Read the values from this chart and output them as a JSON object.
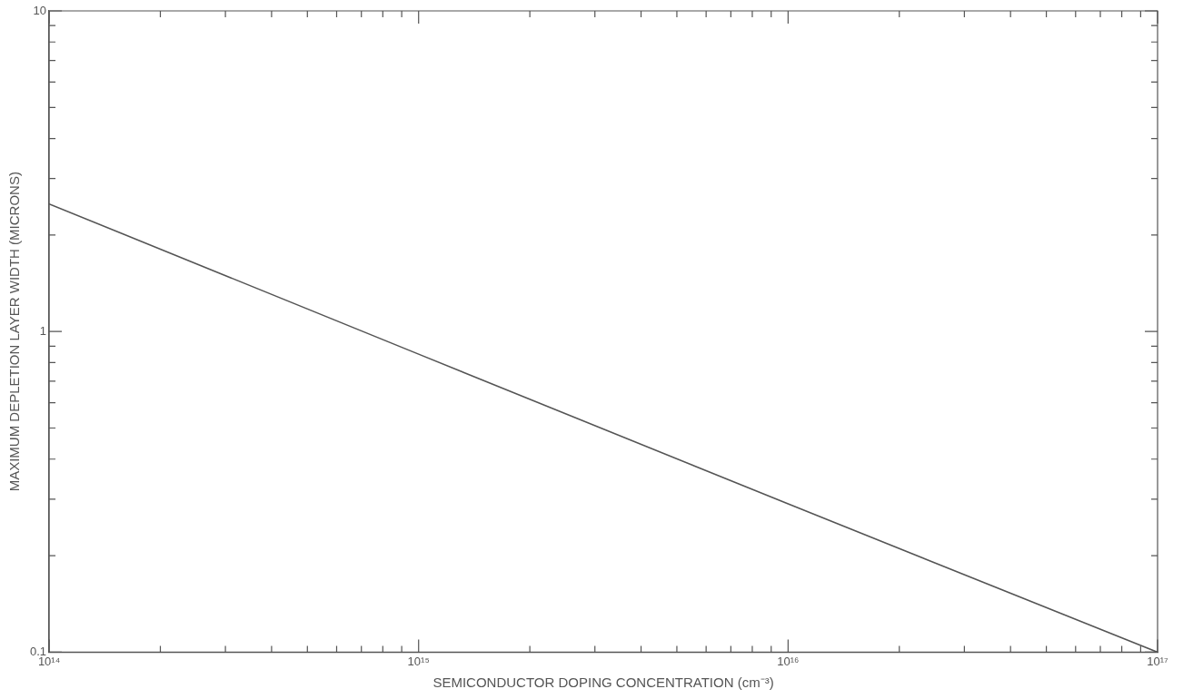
{
  "chart_data": {
    "type": "line",
    "xlabel": "SEMICONDUCTOR DOPING CONCENTRATION (cm⁻³)",
    "ylabel": "MAXIMUM DEPLETION LAYER WIDTH (MICRONS)",
    "x": [
      100000000000000.0,
      1000000000000000.0,
      1e+16,
      1e+17
    ],
    "series": [
      {
        "color": "#555555",
        "values": [
          2.5,
          0.85,
          0.29,
          0.1
        ]
      }
    ],
    "log": "xy",
    "grid": false,
    "legend": false,
    "marker": "none",
    "line_style": "solid",
    "xlim": [
      100000000000000.0,
      1e+17
    ],
    "xticks": [
      {
        "value": 100000000000000.0,
        "label": "10¹⁴"
      },
      {
        "value": 200000000000000.0,
        "label": null
      },
      {
        "value": 300000000000000.0,
        "label": null
      },
      {
        "value": 400000000000000.0,
        "label": null
      },
      {
        "value": 500000000000000.0,
        "label": null
      },
      {
        "value": 600000000000000.0,
        "label": null
      },
      {
        "value": 700000000000000.0,
        "label": null
      },
      {
        "value": 800000000000000.0,
        "label": null
      },
      {
        "value": 900000000000000.0,
        "label": null
      },
      {
        "value": 1000000000000000.0,
        "label": "10¹⁵"
      },
      {
        "value": 2000000000000000.0,
        "label": null
      },
      {
        "value": 3000000000000000.0,
        "label": null
      },
      {
        "value": 4000000000000000.0,
        "label": null
      },
      {
        "value": 5000000000000000.0,
        "label": null
      },
      {
        "value": 6000000000000000.0,
        "label": null
      },
      {
        "value": 7000000000000000.0,
        "label": null
      },
      {
        "value": 8000000000000000.0,
        "label": null
      },
      {
        "value": 9000000000000000.0,
        "label": null
      },
      {
        "value": 1e+16,
        "label": "10¹⁶"
      },
      {
        "value": 2e+16,
        "label": null
      },
      {
        "value": 3e+16,
        "label": null
      },
      {
        "value": 4e+16,
        "label": null
      },
      {
        "value": 5e+16,
        "label": null
      },
      {
        "value": 6e+16,
        "label": null
      },
      {
        "value": 7e+16,
        "label": null
      },
      {
        "value": 8e+16,
        "label": null
      },
      {
        "value": 9e+16,
        "label": null
      },
      {
        "value": 1e+17,
        "label": "10¹⁷"
      }
    ],
    "ylim": [
      0.1,
      10
    ],
    "yticks": [
      0.1,
      {
        "value": 0.2,
        "label": null
      },
      {
        "value": 0.3,
        "label": null
      },
      {
        "value": 0.4,
        "label": null
      },
      {
        "value": 0.5,
        "label": null
      },
      {
        "value": 0.6,
        "label": null
      },
      {
        "value": 0.7,
        "label": null
      },
      {
        "value": 0.8,
        "label": null
      },
      {
        "value": 0.9,
        "label": null
      },
      1,
      {
        "value": 2,
        "label": null
      },
      {
        "value": 3,
        "label": null
      },
      {
        "value": 4,
        "label": null
      },
      {
        "value": 5,
        "label": null
      },
      {
        "value": 6,
        "label": null
      },
      {
        "value": 7,
        "label": null
      },
      {
        "value": 8,
        "label": null
      },
      {
        "value": 9,
        "label": null
      },
      10
    ]
  }
}
